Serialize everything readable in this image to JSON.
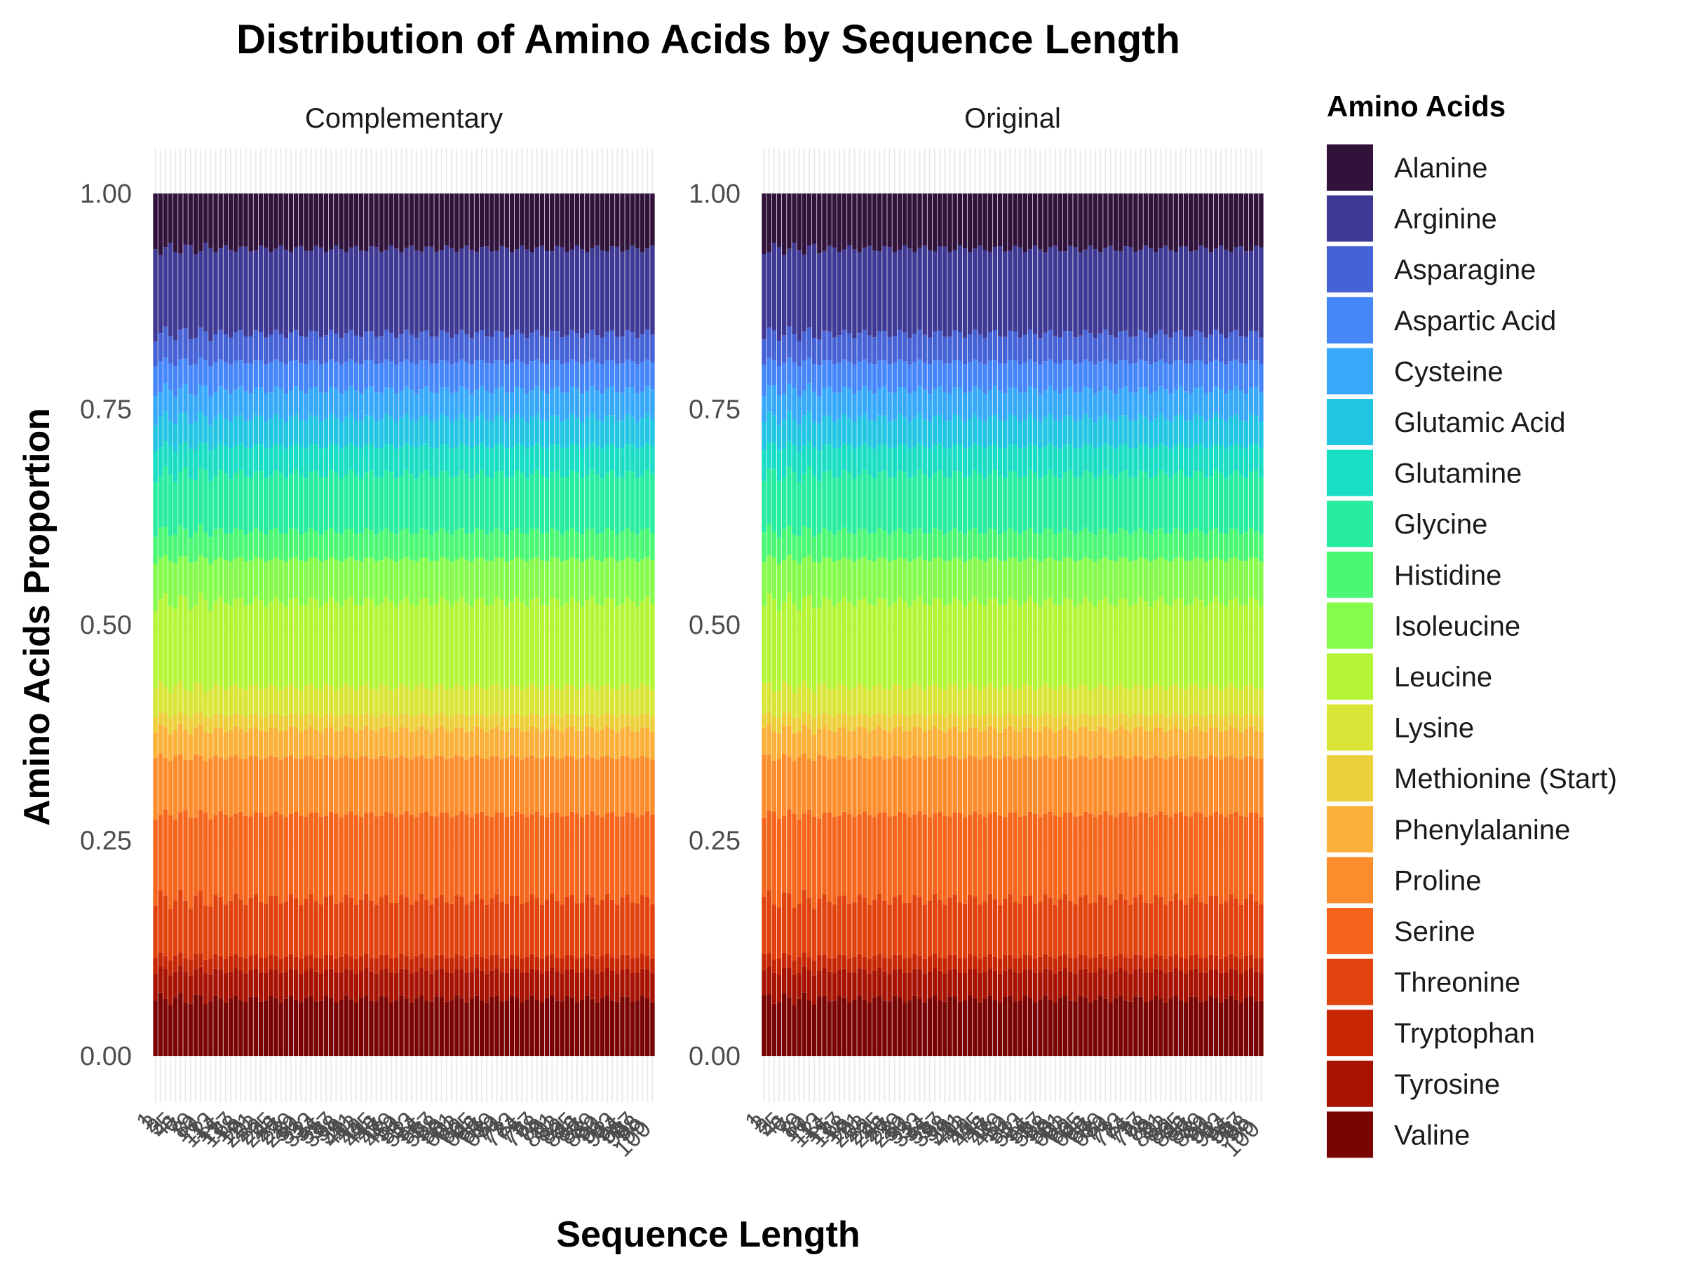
{
  "chart_data": {
    "type": "bar",
    "title": "Distribution of Amino Acids by Sequence Length",
    "xlabel": "Sequence Length",
    "ylabel": "Amino Acids Proportion",
    "ylim": [
      0,
      1
    ],
    "yticks": [
      "0.00",
      "0.25",
      "0.50",
      "0.75",
      "1.00"
    ],
    "stacked": true,
    "facets": [
      "Complementary",
      "Original"
    ],
    "legend_title": "Amino Acids",
    "legend_position": "right",
    "categories_count": 100,
    "series": [
      {
        "name": "Alanine",
        "color": "#30123B",
        "mean_proportion": 0.065
      },
      {
        "name": "Arginine",
        "color": "#3E3994",
        "mean_proportion": 0.1
      },
      {
        "name": "Asparagine",
        "color": "#4662D7",
        "mean_proportion": 0.033
      },
      {
        "name": "Aspartic Acid",
        "color": "#4686FB",
        "mean_proportion": 0.033
      },
      {
        "name": "Cysteine",
        "color": "#36A9FA",
        "mean_proportion": 0.033
      },
      {
        "name": "Glutamic Acid",
        "color": "#22C5E3",
        "mean_proportion": 0.033
      },
      {
        "name": "Glutamine",
        "color": "#19DDC4",
        "mean_proportion": 0.033
      },
      {
        "name": "Glycine",
        "color": "#28EC9F",
        "mean_proportion": 0.067
      },
      {
        "name": "Histidine",
        "color": "#4AF873",
        "mean_proportion": 0.033
      },
      {
        "name": "Isoleucine",
        "color": "#85FC4C",
        "mean_proportion": 0.05
      },
      {
        "name": "Leucine",
        "color": "#B4F636",
        "mean_proportion": 0.1
      },
      {
        "name": "Lysine",
        "color": "#D9E637",
        "mean_proportion": 0.033
      },
      {
        "name": "Methionine (Start)",
        "color": "#EDCF3A",
        "mean_proportion": 0.017
      },
      {
        "name": "Phenylalanine",
        "color": "#FBB139",
        "mean_proportion": 0.033
      },
      {
        "name": "Proline",
        "color": "#FD8D2C",
        "mean_proportion": 0.067
      },
      {
        "name": "Serine",
        "color": "#F5661C",
        "mean_proportion": 0.1
      },
      {
        "name": "Threonine",
        "color": "#E2420D",
        "mean_proportion": 0.067
      },
      {
        "name": "Tryptophan",
        "color": "#C72604",
        "mean_proportion": 0.017
      },
      {
        "name": "Tyrosine",
        "color": "#A71203",
        "mean_proportion": 0.033
      },
      {
        "name": "Valine",
        "color": "#7A0403",
        "mean_proportion": 0.067
      }
    ]
  }
}
